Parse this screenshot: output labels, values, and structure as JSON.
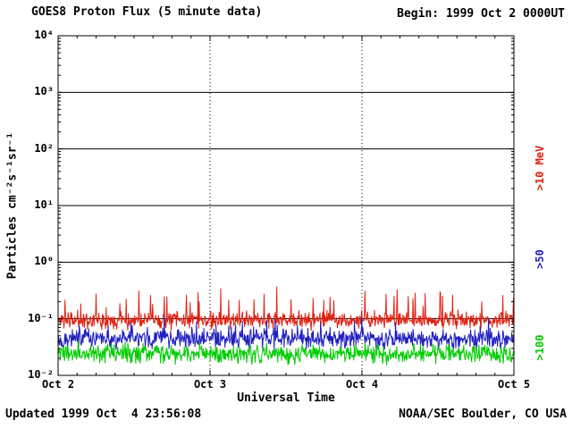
{
  "header": {
    "title": "GOES8 Proton Flux (5 minute data)",
    "begin": "Begin: 1999 Oct 2 0000UT"
  },
  "footer": {
    "updated": "Updated 1999 Oct  4 23:56:08",
    "credit": "NOAA/SEC Boulder, CO USA"
  },
  "chart_data": {
    "type": "line",
    "title": "GOES8 Proton Flux (5 minute data)",
    "xlabel": "Universal Time",
    "ylabel": "Particles cm⁻²s⁻¹sr⁻¹",
    "x_tick_labels": [
      "Oct 2",
      "Oct 3",
      "Oct 4",
      "Oct 5"
    ],
    "y_tick_labels": [
      "10⁴",
      "10³",
      "10²",
      "10¹",
      "10⁰",
      "10⁻¹",
      "10⁻²"
    ],
    "y_tick_exponents": [
      4,
      3,
      2,
      1,
      0,
      -1,
      -2
    ],
    "ylim_log10": [
      -2,
      4
    ],
    "x_range_days": 3,
    "points_per_day": 288,
    "grid": {
      "horizontal": "solid",
      "vertical_day_lines": "dotted"
    },
    "legend_position": "right-rotated",
    "series": [
      {
        "name": ">10 MeV",
        "color": "#e02010",
        "log10_median": -1.02,
        "log10_spread": 0.22,
        "spike_prob": 0.05,
        "spike_mag": 0.5,
        "seed": 11,
        "approx_range": [
          0.05,
          0.5
        ]
      },
      {
        "name": ">50",
        "color": "#2020c0",
        "log10_median": -1.35,
        "log10_spread": 0.25,
        "spike_prob": 0.03,
        "spike_mag": 0.3,
        "seed": 22,
        "approx_range": [
          0.02,
          0.15
        ]
      },
      {
        "name": ">100",
        "color": "#00cc00",
        "log10_median": -1.62,
        "log10_spread": 0.25,
        "spike_prob": 0.01,
        "spike_mag": 0.2,
        "seed": 33,
        "approx_range": [
          0.01,
          0.06
        ]
      }
    ]
  }
}
